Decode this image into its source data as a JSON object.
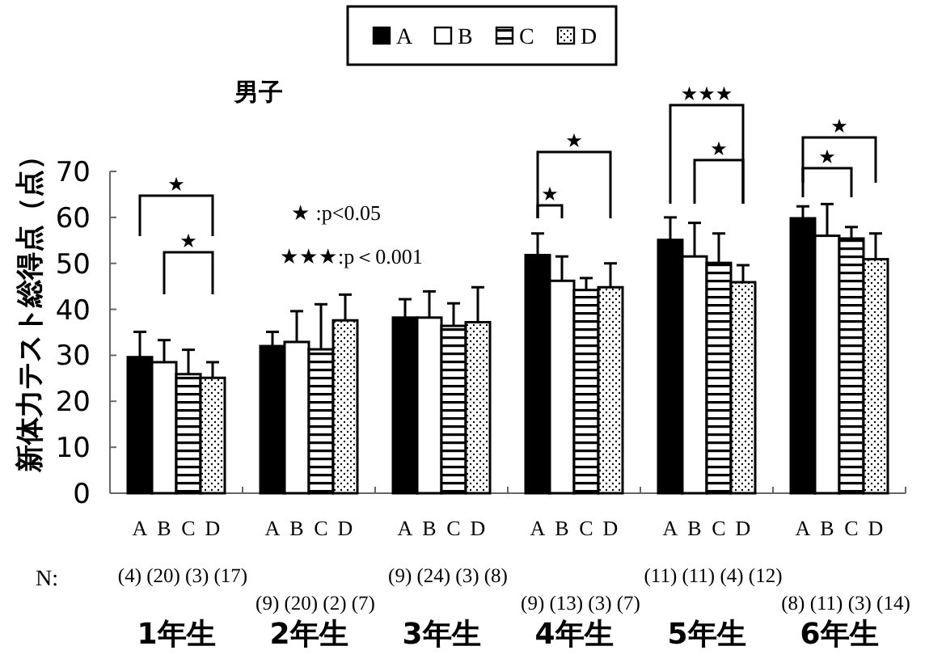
{
  "chart_data": {
    "type": "bar",
    "title": "男子",
    "ylabel": "新体力テスト総得点（点）",
    "categories": [
      "1年生",
      "2年生",
      "3年生",
      "4年生",
      "5年生",
      "6年生"
    ],
    "series": [
      {
        "name": "A",
        "color": "#000000",
        "values": [
          29.6,
          32.0,
          38.2,
          51.8,
          55.1,
          59.8
        ],
        "errors": [
          5.5,
          3.1,
          4.0,
          4.7,
          4.9,
          2.6
        ]
      },
      {
        "name": "B",
        "color": "#ffffff",
        "values": [
          28.5,
          32.9,
          38.2,
          46.2,
          51.5,
          56.0
        ],
        "errors": [
          4.8,
          6.7,
          5.7,
          5.3,
          7.3,
          6.9
        ]
      },
      {
        "name": "C",
        "color": "#000000",
        "values": [
          25.9,
          31.3,
          36.4,
          44.2,
          50.1,
          55.4
        ],
        "errors": [
          5.3,
          9.8,
          4.9,
          2.6,
          6.4,
          2.5
        ]
      },
      {
        "name": "D",
        "color": "#000000",
        "values": [
          25.1,
          37.6,
          37.2,
          44.8,
          45.9,
          50.9
        ],
        "errors": [
          3.4,
          5.6,
          7.6,
          5.2,
          3.7,
          5.6
        ]
      }
    ],
    "ylim": [
      0,
      70
    ],
    "yticks": [
      0,
      10,
      20,
      30,
      40,
      50,
      60,
      70
    ],
    "grid": false,
    "legend": "top",
    "annotations": [
      "★ :p<0.05",
      "★★★:p＜0.001",
      "N:",
      "(4) (20) (3) (17)",
      "(9) (20) (2) (7)",
      "(9) (24) (3) (8)",
      "(9) (13) (3) (7)",
      "(11) (11) (4) (12)",
      "(8) (11) (3) (14)",
      "★",
      "★",
      "★",
      "★",
      "★★★",
      "★",
      "★",
      "★"
    ]
  }
}
